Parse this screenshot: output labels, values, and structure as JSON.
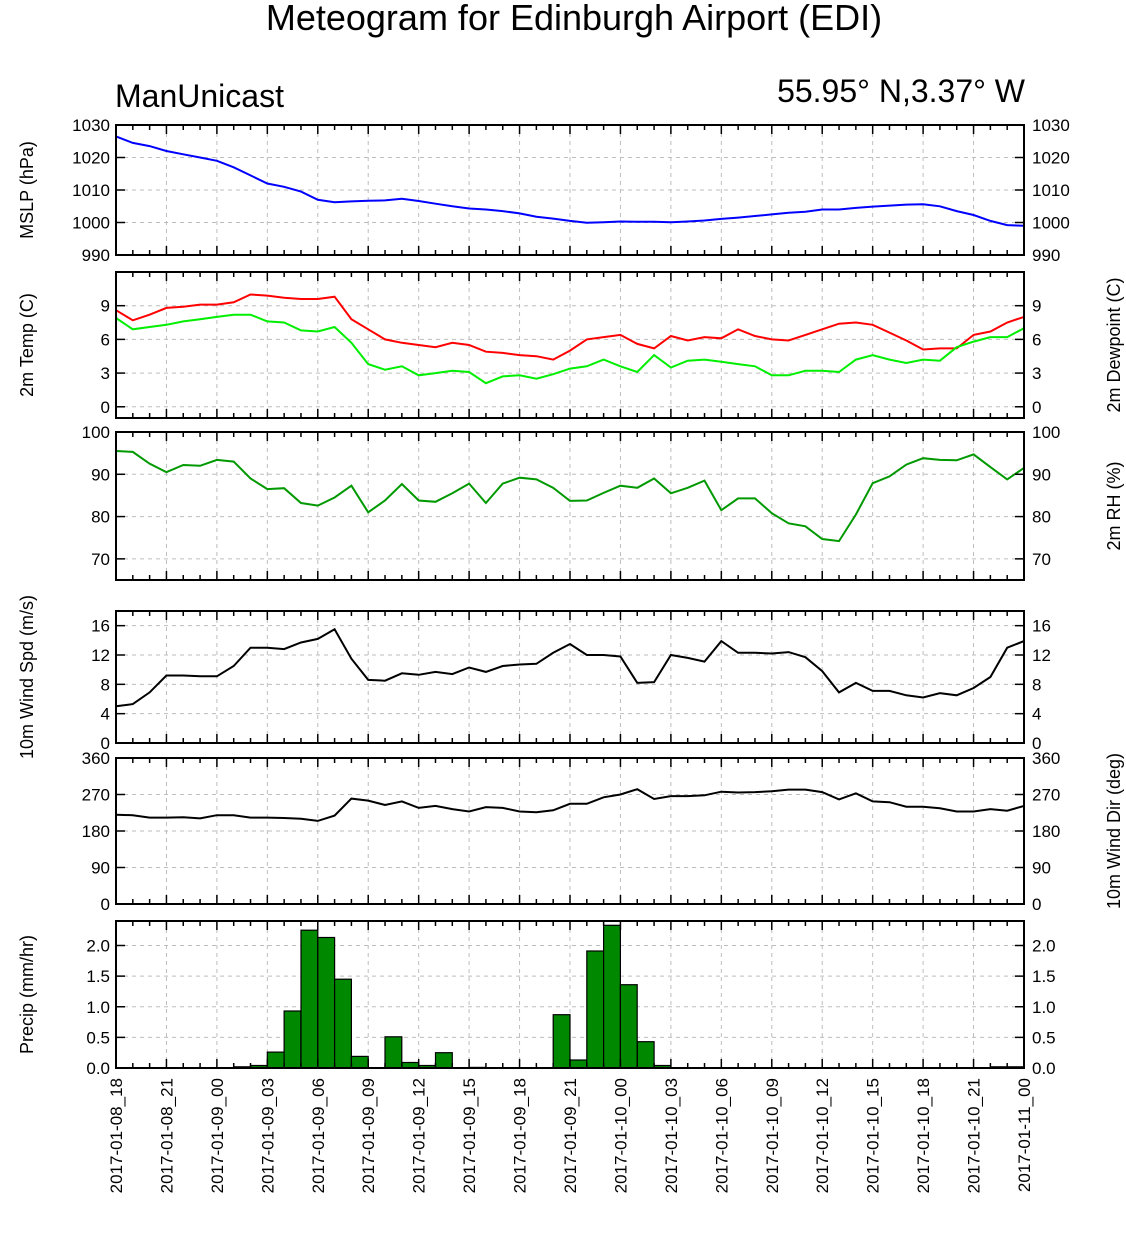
{
  "title": "Meteogram for Edinburgh Airport (EDI)",
  "model": "ManUnicast",
  "location": "55.95° N,3.37° W",
  "x_tick_labels": [
    "2017-01-08_18",
    "2017-01-08_21",
    "2017-01-09_00",
    "2017-01-09_03",
    "2017-01-09_06",
    "2017-01-09_09",
    "2017-01-09_12",
    "2017-01-09_15",
    "2017-01-09_18",
    "2017-01-09_21",
    "2017-01-10_00",
    "2017-01-10_03",
    "2017-01-10_06",
    "2017-01-10_09",
    "2017-01-10_12",
    "2017-01-10_15",
    "2017-01-10_18",
    "2017-01-10_21",
    "2017-01-11_00"
  ],
  "chart_data": [
    {
      "type": "line",
      "ylabel": "MSLP (hPa)",
      "ylim": [
        990,
        1030
      ],
      "yticks": [
        990,
        1000,
        1010,
        1020,
        1030
      ],
      "x_hours": [
        0,
        1,
        2,
        3,
        4,
        5,
        6,
        7,
        8,
        9,
        10,
        11,
        12,
        13,
        14,
        15,
        16,
        17,
        18,
        19,
        20,
        21,
        22,
        23,
        24,
        25,
        26,
        27,
        28,
        29,
        30,
        31,
        32,
        33,
        34,
        35,
        36,
        37,
        38,
        39,
        40,
        41,
        42,
        43,
        44,
        45,
        46,
        47,
        48,
        49,
        50,
        51,
        52,
        53,
        54
      ],
      "series": [
        {
          "color": "#0000ff",
          "values": [
            1026.5,
            1024.5,
            1023.5,
            1022,
            1021,
            1020,
            1019,
            1017,
            1014.5,
            1012,
            1011,
            1009.5,
            1007,
            1006.2,
            1006.5,
            1006.7,
            1006.8,
            1007.3,
            1006.6,
            1005.8,
            1005,
            1004.3,
            1004,
            1003.5,
            1002.8,
            1001.8,
            1001.2,
            1000.5,
            999.9,
            1000.1,
            1000.3,
            1000.2,
            1000.2,
            1000.1,
            1000.3,
            1000.6,
            1001.1,
            1001.5,
            1002,
            1002.5,
            1003,
            1003.3,
            1004,
            1004,
            1004.5,
            1004.9,
            1005.2,
            1005.5,
            1005.6,
            1005,
            1003.5,
            1002.3,
            1000.5,
            999.2,
            999
          ]
        }
      ]
    },
    {
      "type": "line",
      "ylabel": "2m Temp (C)",
      "ylabel_right": "2m Dewpoint (C)",
      "ylim": [
        -1,
        12
      ],
      "yticks": [
        0,
        3,
        6,
        9
      ],
      "x_hours": [
        0,
        1,
        2,
        3,
        4,
        5,
        6,
        7,
        8,
        9,
        10,
        11,
        12,
        13,
        14,
        15,
        16,
        17,
        18,
        19,
        20,
        21,
        22,
        23,
        24,
        25,
        26,
        27,
        28,
        29,
        30,
        31,
        32,
        33,
        34,
        35,
        36,
        37,
        38,
        39,
        40,
        41,
        42,
        43,
        44,
        45,
        46,
        47,
        48,
        49,
        50,
        51,
        52,
        53,
        54
      ],
      "series": [
        {
          "color": "#ff0000",
          "values": [
            8.6,
            7.7,
            8.2,
            8.8,
            8.9,
            9.1,
            9.1,
            9.3,
            10,
            9.9,
            9.7,
            9.6,
            9.6,
            9.8,
            7.8,
            6.9,
            6,
            5.7,
            5.5,
            5.3,
            5.7,
            5.5,
            4.9,
            4.8,
            4.6,
            4.5,
            4.2,
            5,
            6,
            6.2,
            6.4,
            5.6,
            5.2,
            6.3,
            5.9,
            6.2,
            6.1,
            6.9,
            6.3,
            6,
            5.9,
            6.4,
            6.9,
            7.4,
            7.5,
            7.3,
            6.6,
            5.9,
            5.1,
            5.2,
            5.2,
            6.4,
            6.7,
            7.5,
            8.0
          ]
        },
        {
          "color": "#00ee00",
          "values": [
            7.9,
            6.9,
            7.1,
            7.3,
            7.6,
            7.8,
            8,
            8.2,
            8.2,
            7.6,
            7.5,
            6.8,
            6.7,
            7.1,
            5.7,
            3.8,
            3.3,
            3.6,
            2.8,
            3,
            3.2,
            3.1,
            2.1,
            2.7,
            2.8,
            2.5,
            2.9,
            3.4,
            3.6,
            4.2,
            3.6,
            3.1,
            4.6,
            3.5,
            4.1,
            4.2,
            4,
            3.8,
            3.6,
            2.8,
            2.8,
            3.2,
            3.2,
            3.1,
            4.2,
            4.6,
            4.2,
            3.9,
            4.2,
            4.1,
            5.3,
            5.8,
            6.2,
            6.2,
            7.0
          ]
        }
      ]
    },
    {
      "type": "line",
      "ylabel": "",
      "ylabel_right": "2m RH (%)",
      "ylim": [
        65,
        100
      ],
      "yticks": [
        70,
        80,
        90,
        100
      ],
      "x_hours": [
        0,
        1,
        2,
        3,
        4,
        5,
        6,
        7,
        8,
        9,
        10,
        11,
        12,
        13,
        14,
        15,
        16,
        17,
        18,
        19,
        20,
        21,
        22,
        23,
        24,
        25,
        26,
        27,
        28,
        29,
        30,
        31,
        32,
        33,
        34,
        35,
        36,
        37,
        38,
        39,
        40,
        41,
        42,
        43,
        44,
        45,
        46,
        47,
        48,
        49,
        50,
        51,
        52,
        53,
        54
      ],
      "series": [
        {
          "color": "#009900",
          "values": [
            95.5,
            95.3,
            92.5,
            90.5,
            92.2,
            92,
            93.4,
            93,
            89,
            86.5,
            86.7,
            83.2,
            82.6,
            84.5,
            87.3,
            81,
            83.8,
            87.7,
            83.8,
            83.5,
            85.5,
            87.8,
            83.2,
            87.8,
            89.2,
            88.8,
            86.8,
            83.7,
            83.8,
            85.6,
            87.3,
            86.8,
            89,
            85.5,
            86.8,
            88.5,
            81.5,
            84.3,
            84.3,
            80.8,
            78.4,
            77.7,
            74.7,
            74.2,
            80.5,
            87.9,
            89.5,
            92.3,
            93.8,
            93.4,
            93.3,
            94.7,
            91.7,
            88.8,
            91.5
          ]
        }
      ]
    },
    {
      "type": "line",
      "ylabel": "10m Wind Spd (m/s)",
      "ylim": [
        0,
        18
      ],
      "yticks": [
        0,
        4,
        8,
        12,
        16
      ],
      "x_hours": [
        0,
        1,
        2,
        3,
        4,
        5,
        6,
        7,
        8,
        9,
        10,
        11,
        12,
        13,
        14,
        15,
        16,
        17,
        18,
        19,
        20,
        21,
        22,
        23,
        24,
        25,
        26,
        27,
        28,
        29,
        30,
        31,
        32,
        33,
        34,
        35,
        36,
        37,
        38,
        39,
        40,
        41,
        42,
        43,
        44,
        45,
        46,
        47,
        48,
        49,
        50,
        51,
        52,
        53,
        54
      ],
      "series": [
        {
          "color": "#000000",
          "values": [
            5,
            5.3,
            6.9,
            9.2,
            9.2,
            9.1,
            9.1,
            10.5,
            13,
            13,
            12.8,
            13.7,
            14.2,
            15.5,
            11.5,
            8.6,
            8.5,
            9.5,
            9.3,
            9.7,
            9.4,
            10.3,
            9.7,
            10.5,
            10.7,
            10.8,
            12.3,
            13.5,
            12,
            12,
            11.8,
            8.2,
            8.3,
            12,
            11.6,
            11.1,
            13.9,
            12.3,
            12.3,
            12.2,
            12.4,
            11.7,
            9.8,
            6.9,
            8.2,
            7.1,
            7.1,
            6.5,
            6.2,
            6.8,
            6.5,
            7.5,
            9,
            13,
            13.9
          ]
        }
      ]
    },
    {
      "type": "line",
      "ylabel": "",
      "ylabel_right": "10m Wind Dir (deg)",
      "ylim": [
        0,
        360
      ],
      "yticks": [
        0,
        90,
        180,
        270,
        360
      ],
      "x_hours": [
        0,
        1,
        2,
        3,
        4,
        5,
        6,
        7,
        8,
        9,
        10,
        11,
        12,
        13,
        14,
        15,
        16,
        17,
        18,
        19,
        20,
        21,
        22,
        23,
        24,
        25,
        26,
        27,
        28,
        29,
        30,
        31,
        32,
        33,
        34,
        35,
        36,
        37,
        38,
        39,
        40,
        41,
        42,
        43,
        44,
        45,
        46,
        47,
        48,
        49,
        50,
        51,
        52,
        53,
        54
      ],
      "series": [
        {
          "color": "#000000",
          "values": [
            220,
            219,
            213,
            213,
            214,
            211,
            219,
            219,
            213,
            213,
            212,
            210,
            205,
            218,
            260,
            255,
            244,
            253,
            237,
            242,
            234,
            228,
            239,
            237,
            228,
            226,
            231,
            247,
            247,
            263,
            270,
            283,
            259,
            266,
            266,
            268,
            277,
            275,
            276,
            278,
            282,
            282,
            276,
            258,
            273,
            253,
            251,
            240,
            240,
            236,
            228,
            228,
            234,
            230,
            242
          ]
        }
      ]
    },
    {
      "type": "bar",
      "ylabel": "Precip (mm/hr)",
      "ylim": [
        0,
        2.4
      ],
      "yticks": [
        0.0,
        0.5,
        1.0,
        1.5,
        2.0
      ],
      "ytick_labels": [
        "0.0",
        "0.5",
        "1.0",
        "1.5",
        "2.0"
      ],
      "bar_color": "#008800",
      "bars": [
        {
          "start": 7,
          "value": 0.02
        },
        {
          "start": 8,
          "value": 0.04
        },
        {
          "start": 9,
          "value": 0.26
        },
        {
          "start": 10,
          "value": 0.93
        },
        {
          "start": 11,
          "value": 2.25
        },
        {
          "start": 12,
          "value": 2.13
        },
        {
          "start": 13,
          "value": 1.45
        },
        {
          "start": 14,
          "value": 0.19
        },
        {
          "start": 16,
          "value": 0.51
        },
        {
          "start": 17,
          "value": 0.09
        },
        {
          "start": 18,
          "value": 0.04
        },
        {
          "start": 19,
          "value": 0.25
        },
        {
          "start": 21,
          "value": 0.01
        },
        {
          "start": 26,
          "value": 0.87
        },
        {
          "start": 27,
          "value": 0.13
        },
        {
          "start": 28,
          "value": 1.91
        },
        {
          "start": 29,
          "value": 2.33
        },
        {
          "start": 30,
          "value": 1.36
        },
        {
          "start": 31,
          "value": 0.43
        },
        {
          "start": 32,
          "value": 0.04
        },
        {
          "start": 52,
          "value": 0.02
        },
        {
          "start": 53,
          "value": 0.02
        }
      ]
    }
  ]
}
